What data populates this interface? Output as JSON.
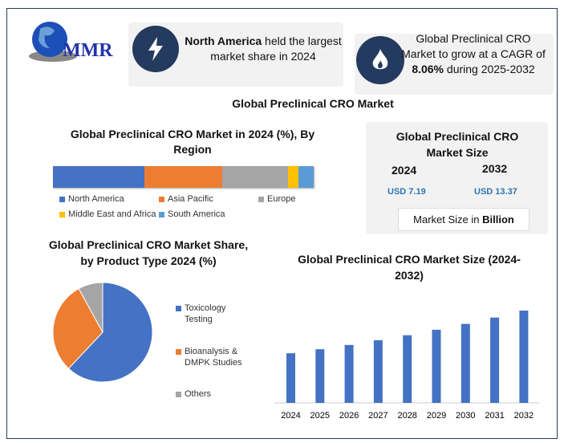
{
  "logo": {
    "text": "MMR"
  },
  "highlights": [
    {
      "icon": "lightning-icon",
      "bold": "North America",
      "text": " held the largest market share in 2024"
    },
    {
      "icon": "flame-icon",
      "pre": "Global Preclinical CRO Market to grow at a CAGR of ",
      "bold": "8.06%",
      "post": " during 2025-2032"
    }
  ],
  "main_title": "Global Preclinical CRO Market",
  "market_size": {
    "title": "Global Preclinical CRO Market Size",
    "years": [
      "2024",
      "2032"
    ],
    "values": [
      "USD 7.19",
      "USD 13.37"
    ],
    "note_pre": "Market Size in ",
    "note_bold": "Billion"
  },
  "colors": {
    "blue": "#4472c4",
    "orange": "#ed7d31",
    "gray": "#a5a5a5",
    "yellow": "#ffc000",
    "lightblue": "#5b9bd5",
    "navy": "#243a5e"
  },
  "chart_data": [
    {
      "type": "bar",
      "orientation": "stacked-horizontal",
      "title": "Global Preclinical CRO Market in 2024 (%), By Region",
      "categories": [
        "North America",
        "Asia Pacific",
        "Europe",
        "Middle East and Africa",
        "South America"
      ],
      "values": [
        35,
        30,
        25,
        4,
        6
      ],
      "legend": "bottom"
    },
    {
      "type": "pie",
      "title": "Global Preclinical CRO Market Share, by Product Type 2024 (%)",
      "categories": [
        "Toxicology Testing",
        "Bioanalysis & DMPK Studies",
        "Others"
      ],
      "values": [
        62,
        30,
        8
      ],
      "legend": "right"
    },
    {
      "type": "bar",
      "title": "Global Preclinical CRO Market Size (2024-2032)",
      "categories": [
        "2024",
        "2025",
        "2026",
        "2027",
        "2028",
        "2029",
        "2030",
        "2031",
        "2032"
      ],
      "values": [
        7.19,
        7.77,
        8.39,
        9.07,
        9.8,
        10.59,
        11.44,
        12.36,
        13.37
      ],
      "ylim": [
        0,
        14
      ],
      "xlabel": "",
      "ylabel": ""
    }
  ]
}
